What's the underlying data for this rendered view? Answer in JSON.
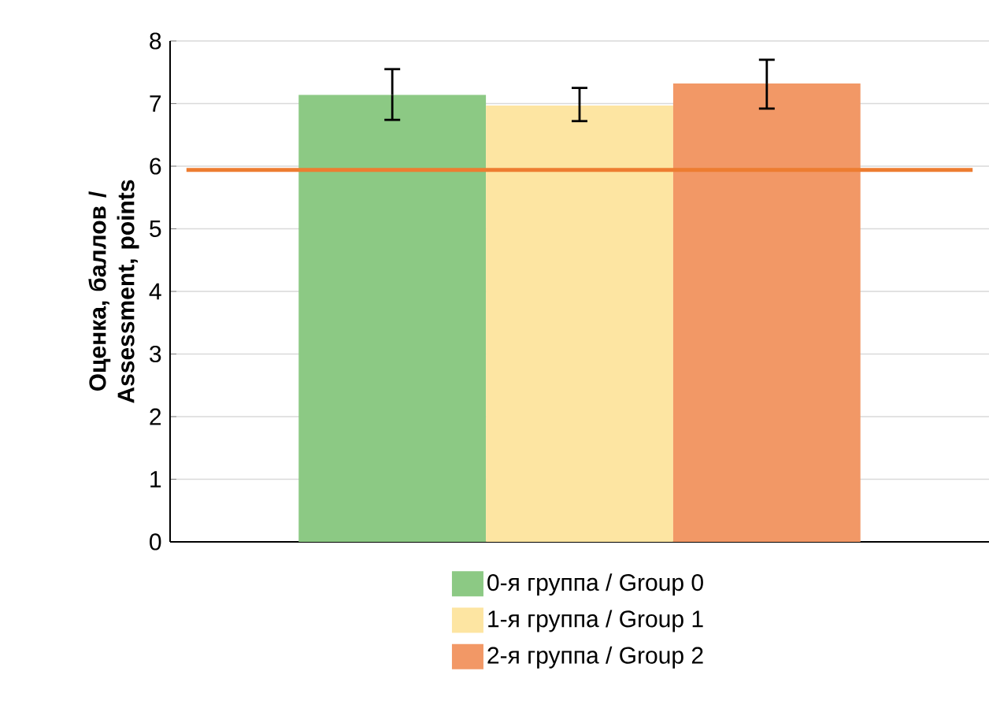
{
  "chart_data": {
    "type": "bar",
    "ylabel": "Оценка, баллов / Assessment, points",
    "categories": [
      null
    ],
    "series": [
      {
        "name": "0-я группа / Group 0",
        "color": "#8cc984",
        "values": [
          7.14
        ],
        "errors": [
          [
            6.74,
            7.55
          ]
        ]
      },
      {
        "name": "1-я группа / Group 1",
        "color": "#fde5a2",
        "values": [
          6.97
        ],
        "errors": [
          [
            6.72,
            7.25
          ]
        ]
      },
      {
        "name": "2-я группа / Group 2",
        "color": "#f29866",
        "values": [
          7.32
        ],
        "errors": [
          [
            6.92,
            7.7
          ]
        ]
      }
    ],
    "ylim": [
      0,
      8
    ],
    "yticks": [
      0,
      1,
      2,
      3,
      4,
      5,
      6,
      7,
      8
    ],
    "grid": "y",
    "legend": "bottom",
    "ref_lines": [
      {
        "axis": "y",
        "value": 5.94,
        "color": "#ed7d31"
      }
    ]
  }
}
